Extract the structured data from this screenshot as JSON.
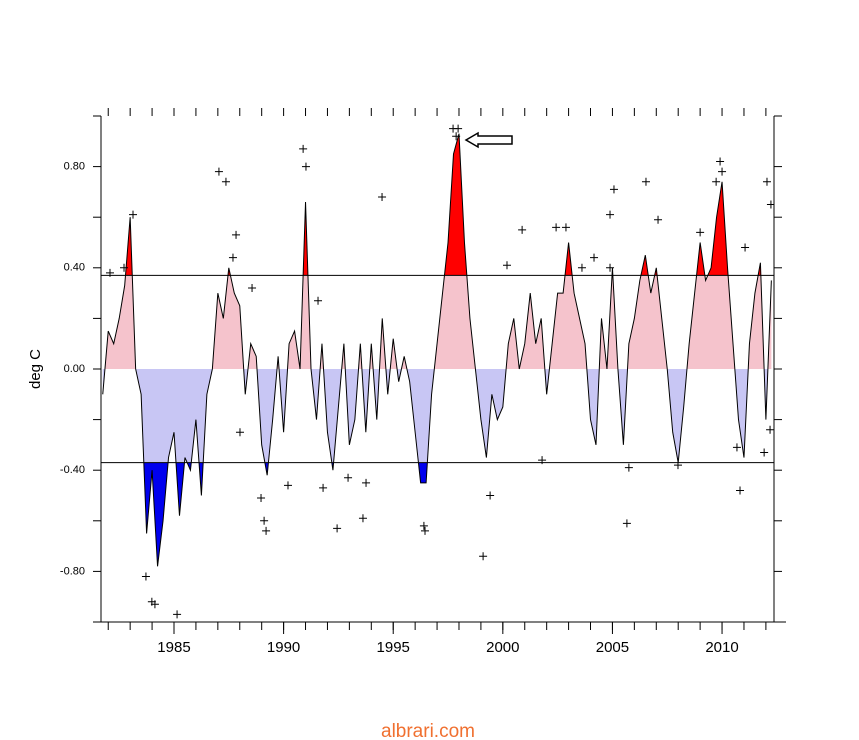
{
  "chart_data": {
    "type": "line",
    "ylabel": "deg C",
    "footer": "albrari.com",
    "xlim": [
      1981.67,
      2012.37
    ],
    "ylim": [
      -1.0,
      1.0
    ],
    "xticks": [
      1985,
      1990,
      1995,
      2000,
      2005,
      2010
    ],
    "xminorticks": [
      1982,
      1983,
      1984,
      1985,
      1986,
      1987,
      1988,
      1989,
      1990,
      1991,
      1992,
      1993,
      1994,
      1995,
      1996,
      1997,
      1998,
      1999,
      2000,
      2001,
      2002,
      2003,
      2004,
      2005,
      2006,
      2007,
      2008,
      2009,
      2010,
      2011,
      2012
    ],
    "yticks": [
      {
        "value": -0.8,
        "label": "-0.80"
      },
      {
        "value": -0.4,
        "label": "-0.40"
      },
      {
        "value": 0,
        "label": "0.00"
      },
      {
        "value": 0.4,
        "label": "0.40"
      },
      {
        "value": 0.8,
        "label": "0.80"
      }
    ],
    "yminorticks": [
      -1.0,
      -0.8,
      -0.6,
      -0.4,
      -0.2,
      0,
      0.2,
      0.4,
      0.6,
      0.8,
      1.0
    ],
    "thresholds": [
      -0.37,
      0.37
    ],
    "colors": {
      "line": "#000000",
      "above": "#f5c3cc",
      "below": "#c8c6f4",
      "strong_above": "#ff0000",
      "strong_below": "#0000ee",
      "points": "#000000"
    },
    "line": {
      "x": [
        1981.75,
        1982,
        1982.25,
        1982.5,
        1982.75,
        1983,
        1983.25,
        1983.5,
        1983.75,
        1984,
        1984.25,
        1984.5,
        1984.75,
        1985,
        1985.25,
        1985.5,
        1985.75,
        1986,
        1986.25,
        1986.5,
        1986.75,
        1987,
        1987.25,
        1987.5,
        1987.75,
        1988,
        1988.25,
        1988.5,
        1988.75,
        1989,
        1989.25,
        1989.5,
        1989.75,
        1990,
        1990.25,
        1990.5,
        1990.75,
        1991,
        1991.25,
        1991.5,
        1991.75,
        1992,
        1992.25,
        1992.5,
        1992.75,
        1993,
        1993.25,
        1993.5,
        1993.75,
        1994,
        1994.25,
        1994.5,
        1994.75,
        1995,
        1995.25,
        1995.5,
        1995.75,
        1996,
        1996.25,
        1996.5,
        1996.75,
        1997,
        1997.25,
        1997.5,
        1997.75,
        1998,
        1998.25,
        1998.5,
        1998.75,
        1999,
        1999.25,
        1999.5,
        1999.75,
        2000,
        2000.25,
        2000.5,
        2000.75,
        2001,
        2001.25,
        2001.5,
        2001.75,
        2002,
        2002.25,
        2002.5,
        2002.75,
        2003,
        2003.25,
        2003.5,
        2003.75,
        2004,
        2004.25,
        2004.5,
        2004.75,
        2005,
        2005.25,
        2005.5,
        2005.75,
        2006,
        2006.25,
        2006.5,
        2006.75,
        2007,
        2007.25,
        2007.5,
        2007.75,
        2008,
        2008.25,
        2008.5,
        2008.75,
        2009,
        2009.25,
        2009.5,
        2009.75,
        2010,
        2010.25,
        2010.5,
        2010.75,
        2011,
        2011.25,
        2011.5,
        2011.75,
        2012,
        2012.25
      ],
      "values": [
        -0.1,
        0.15,
        0.1,
        0.2,
        0.33,
        0.6,
        0.0,
        -0.1,
        -0.65,
        -0.4,
        -0.78,
        -0.6,
        -0.35,
        -0.25,
        -0.58,
        -0.35,
        -0.4,
        -0.2,
        -0.5,
        -0.1,
        0.0,
        0.3,
        0.2,
        0.4,
        0.3,
        0.25,
        -0.1,
        0.1,
        0.05,
        -0.3,
        -0.42,
        -0.2,
        0.05,
        -0.25,
        0.1,
        0.15,
        0.0,
        0.66,
        0.0,
        -0.2,
        0.1,
        -0.25,
        -0.4,
        -0.15,
        0.1,
        -0.3,
        -0.2,
        0.1,
        -0.25,
        0.1,
        -0.2,
        0.2,
        -0.1,
        0.12,
        -0.05,
        0.05,
        -0.05,
        -0.25,
        -0.45,
        -0.45,
        -0.1,
        0.1,
        0.3,
        0.5,
        0.85,
        0.93,
        0.5,
        0.2,
        0.0,
        -0.2,
        -0.35,
        -0.1,
        -0.2,
        -0.15,
        0.1,
        0.2,
        0.0,
        0.1,
        0.3,
        0.1,
        0.2,
        -0.1,
        0.1,
        0.3,
        0.3,
        0.5,
        0.3,
        0.2,
        0.1,
        -0.2,
        -0.3,
        0.2,
        0.0,
        0.4,
        0.0,
        -0.3,
        0.1,
        0.2,
        0.35,
        0.45,
        0.3,
        0.4,
        0.2,
        0.0,
        -0.25,
        -0.37,
        -0.15,
        0.1,
        0.3,
        0.5,
        0.35,
        0.4,
        0.6,
        0.74,
        0.4,
        0.1,
        -0.2,
        -0.35,
        0.1,
        0.3,
        0.42,
        -0.2,
        0.35
      ]
    },
    "points": {
      "x": [
        1982.08,
        1982.72,
        1983.13,
        1983.72,
        1983.99,
        1984.13,
        1985.14,
        1987.05,
        1987.37,
        1987.83,
        1987.69,
        1988.01,
        1988.56,
        1988.97,
        1989.11,
        1989.2,
        1990.2,
        1990.89,
        1991.02,
        1991.57,
        1991.8,
        1992.44,
        1992.94,
        1993.62,
        1993.76,
        1994.49,
        1996.4,
        1996.45,
        1997.73,
        1997.96,
        1997.87,
        1999.42,
        1999.1,
        2000.19,
        2000.88,
        2001.79,
        2002.43,
        2002.88,
        2003.61,
        2004.16,
        2004.89,
        2005.07,
        2004.89,
        2005.66,
        2005.75,
        2006.53,
        2007.08,
        2007.99,
        2009.0,
        2009.73,
        2009.91,
        2010.0,
        2010.68,
        2010.82,
        2011.05,
        2011.92,
        2012.05,
        2012.23,
        2012.19
      ],
      "values": [
        0.38,
        0.4,
        0.61,
        -0.82,
        -0.92,
        -0.93,
        -0.97,
        0.78,
        0.74,
        0.53,
        0.44,
        -0.25,
        0.32,
        -0.51,
        -0.6,
        -0.64,
        -0.46,
        0.87,
        0.8,
        0.27,
        -0.47,
        -0.63,
        -0.43,
        -0.59,
        -0.45,
        0.68,
        -0.62,
        -0.64,
        0.95,
        0.95,
        0.92,
        -0.5,
        -0.74,
        0.41,
        0.55,
        -0.36,
        0.56,
        0.56,
        0.4,
        0.44,
        0.4,
        0.71,
        0.61,
        -0.61,
        -0.39,
        0.74,
        0.59,
        -0.38,
        0.54,
        0.74,
        0.82,
        0.78,
        -0.31,
        -0.48,
        0.48,
        -0.33,
        0.74,
        0.65,
        -0.24
      ]
    }
  }
}
